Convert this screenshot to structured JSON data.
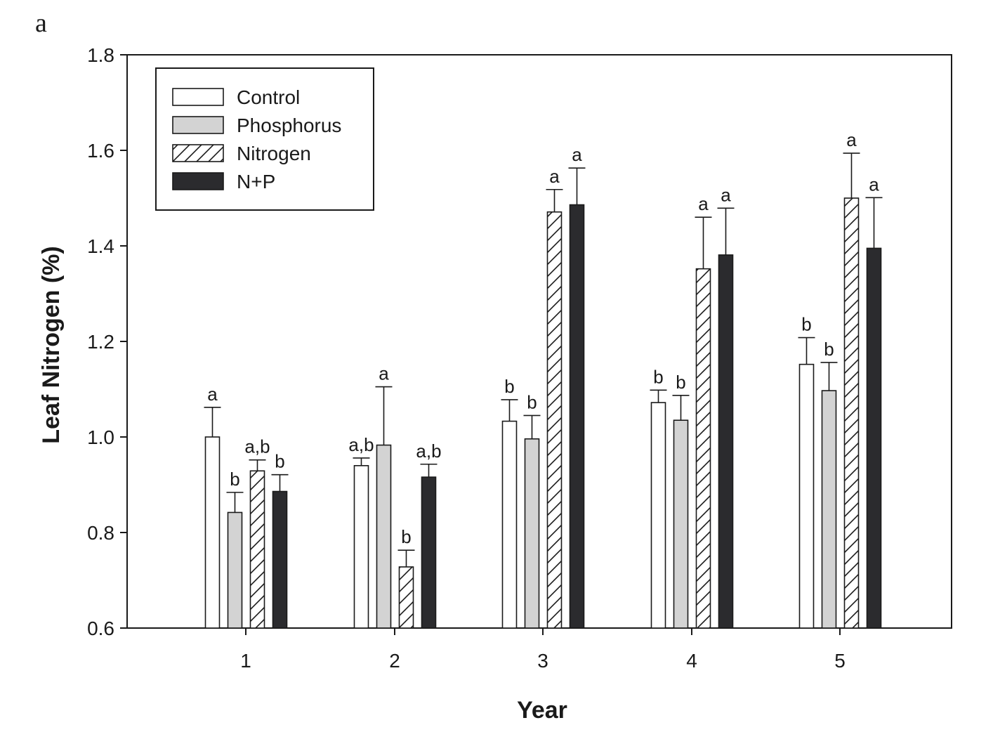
{
  "panel_label": "a",
  "colors": {
    "control": "#ffffff",
    "phosphorus": "#d3d3d3",
    "nitrogen": "hatched",
    "n_plus_p": "#2b2b2e",
    "axis": "#1a1a1a"
  },
  "chart_data": {
    "type": "bar",
    "xlabel": "Year",
    "ylabel": "Leaf Nitrogen (%)",
    "ylim": [
      0.6,
      1.8
    ],
    "yticks": [
      "0.6",
      "0.8",
      "1.0",
      "1.2",
      "1.4",
      "1.6",
      "1.8"
    ],
    "categories": [
      "1",
      "2",
      "3",
      "4",
      "5"
    ],
    "legend_position": "top-left",
    "grid": false,
    "series": [
      {
        "name": "Control",
        "fill": "white",
        "values": [
          1.0,
          0.94,
          1.033,
          1.072,
          1.152
        ],
        "errors": [
          0.062,
          0.016,
          0.045,
          0.026,
          0.056
        ],
        "sig": [
          "a",
          "a,b",
          "b",
          "b",
          "b"
        ]
      },
      {
        "name": "Phosphorus",
        "fill": "gray",
        "values": [
          0.842,
          0.983,
          0.996,
          1.035,
          1.097
        ],
        "errors": [
          0.042,
          0.122,
          0.049,
          0.052,
          0.059
        ],
        "sig": [
          "b",
          "a",
          "b",
          "b",
          "b"
        ]
      },
      {
        "name": "Nitrogen",
        "fill": "hatch",
        "values": [
          0.929,
          0.728,
          1.471,
          1.352,
          1.5
        ],
        "errors": [
          0.023,
          0.035,
          0.047,
          0.108,
          0.094
        ],
        "sig": [
          "a,b",
          "b",
          "a",
          "a",
          "a"
        ]
      },
      {
        "name": "N+P",
        "fill": "black",
        "values": [
          0.886,
          0.916,
          1.486,
          1.381,
          1.395
        ],
        "errors": [
          0.035,
          0.027,
          0.077,
          0.098,
          0.106
        ],
        "sig": [
          "b",
          "a,b",
          "a",
          "a",
          "a"
        ]
      }
    ]
  }
}
